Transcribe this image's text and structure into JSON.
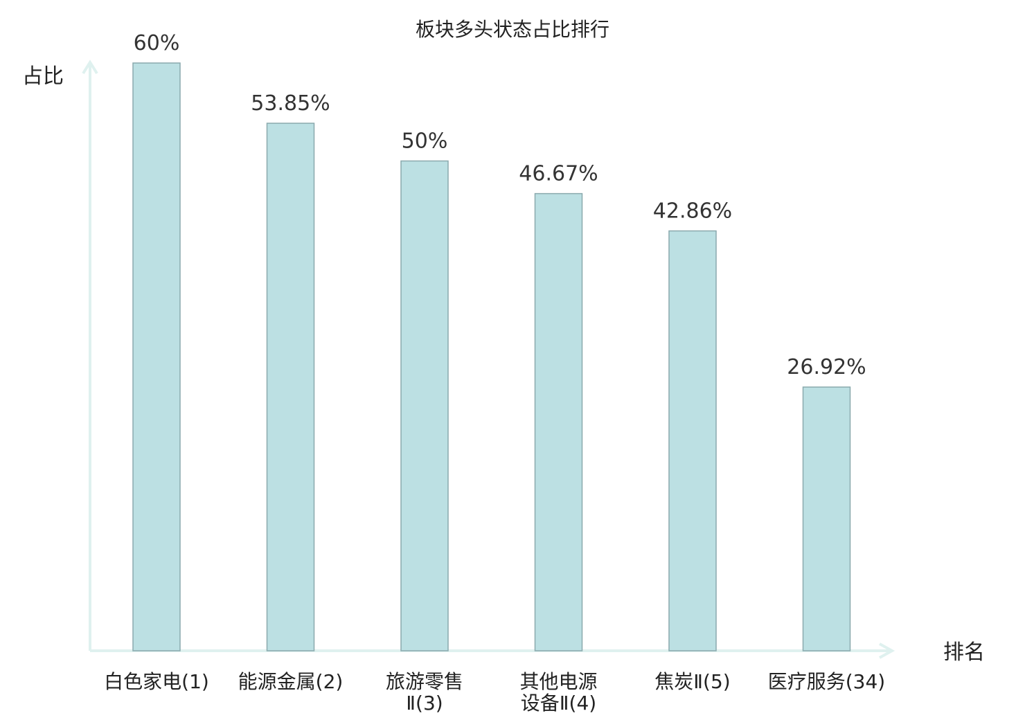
{
  "chart_data": {
    "type": "bar",
    "title": "板块多头状态占比排行",
    "ylabel": "占比",
    "xlabel": "排名",
    "ylim": [
      0,
      60
    ],
    "unit": "%",
    "categories": [
      [
        "白色家电(1)"
      ],
      [
        "能源金属(2)"
      ],
      [
        "旅游零售",
        "Ⅱ(3)"
      ],
      [
        "其他电源",
        "设备Ⅱ(4)"
      ],
      [
        "焦炭Ⅱ(5)"
      ],
      [
        "医疗服务(34)"
      ]
    ],
    "values": [
      60,
      53.85,
      50,
      46.67,
      42.86,
      26.92
    ],
    "value_labels": [
      "60%",
      "53.85%",
      "50%",
      "46.67%",
      "42.86%",
      "26.92%"
    ],
    "highlight_index": 5,
    "colors": {
      "bar_fill": "#bce0e3",
      "bar_stroke": "#8aa9ad",
      "axis": "#dff1ef",
      "text": "#222222",
      "highlight": "#e0201a"
    }
  }
}
